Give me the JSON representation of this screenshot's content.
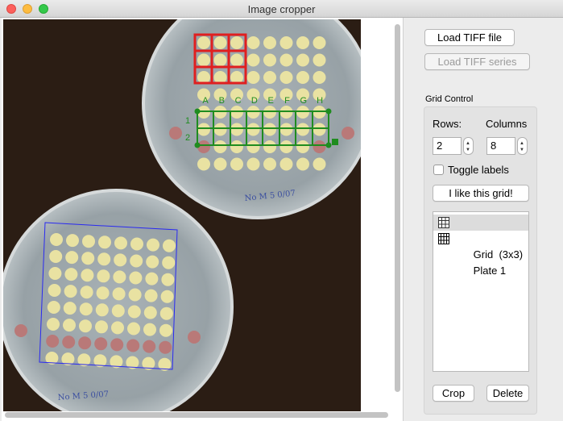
{
  "window": {
    "title": "Image cropper"
  },
  "buttons": {
    "load_tiff": "Load TIFF file",
    "load_series": "Load TIFF series",
    "like_grid": "I like this grid!",
    "crop": "Crop",
    "delete": "Delete"
  },
  "grid_control": {
    "title": "Grid Control",
    "rows_label": "Rows:",
    "columns_label": "Columns",
    "rows_value": "2",
    "columns_value": "8",
    "toggle_labels": "Toggle labels",
    "toggle_checked": false
  },
  "items": [
    {
      "label": "Grid  (3x3)",
      "selected": true
    },
    {
      "label": "Plate 1",
      "selected": false
    }
  ],
  "overlay": {
    "column_letters": [
      "A",
      "B",
      "C",
      "D",
      "E",
      "F",
      "G",
      "H"
    ],
    "row_numbers": [
      "1",
      "2"
    ],
    "plate_note": "No M 5 0/07"
  },
  "colors": {
    "red_grid": "#e01f1f",
    "green_grid": "#1f8c1f",
    "blue_box": "#2a2af0",
    "colony_yellow": "#e9e2a2",
    "background": "#2b1d14"
  }
}
